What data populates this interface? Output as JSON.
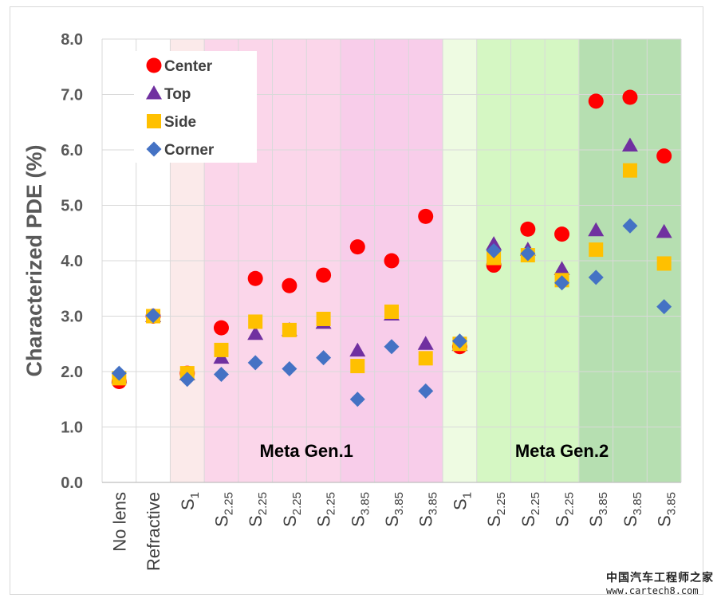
{
  "chart_data": {
    "type": "scatter",
    "ylabel": "Characterized PDE (%)",
    "ylim": [
      0,
      8
    ],
    "yticks": [
      "0.0",
      "1.0",
      "2.0",
      "3.0",
      "4.0",
      "5.0",
      "6.0",
      "7.0",
      "8.0"
    ],
    "categories": [
      {
        "base": "No lens",
        "sub": ""
      },
      {
        "base": "Refractive",
        "sub": ""
      },
      {
        "base": "S",
        "sub": "1"
      },
      {
        "base": "S",
        "sub": "2.25"
      },
      {
        "base": "S",
        "sub": "2.25"
      },
      {
        "base": "S",
        "sub": "2.25"
      },
      {
        "base": "S",
        "sub": "2.25"
      },
      {
        "base": "S",
        "sub": "3.85"
      },
      {
        "base": "S",
        "sub": "3.85"
      },
      {
        "base": "S",
        "sub": "3.85"
      },
      {
        "base": "S",
        "sub": "1"
      },
      {
        "base": "S",
        "sub": "2.25"
      },
      {
        "base": "S",
        "sub": "2.25"
      },
      {
        "base": "S",
        "sub": "2.25"
      },
      {
        "base": "S",
        "sub": "3.85"
      },
      {
        "base": "S",
        "sub": "3.85"
      },
      {
        "base": "S",
        "sub": "3.85"
      }
    ],
    "series": [
      {
        "name": "Center",
        "marker": "circle",
        "color": "#ff0000",
        "values": [
          1.82,
          3.0,
          1.97,
          2.79,
          3.68,
          3.55,
          3.74,
          4.25,
          4.0,
          4.8,
          2.45,
          3.92,
          4.57,
          4.48,
          6.88,
          6.95,
          5.89
        ]
      },
      {
        "name": "Top",
        "marker": "triangle",
        "color": "#7030a0",
        "values": [
          1.9,
          3.0,
          1.95,
          2.25,
          2.68,
          2.75,
          2.88,
          2.38,
          3.03,
          2.5,
          2.48,
          4.3,
          4.2,
          3.85,
          4.55,
          6.08,
          4.52
        ]
      },
      {
        "name": "Side",
        "marker": "square",
        "color": "#ffc000",
        "values": [
          1.88,
          3.0,
          1.97,
          2.39,
          2.9,
          2.75,
          2.95,
          2.1,
          3.08,
          2.24,
          2.5,
          4.05,
          4.1,
          3.65,
          4.2,
          5.63,
          3.95
        ]
      },
      {
        "name": "Corner",
        "marker": "diamond",
        "color": "#4472c4",
        "values": [
          1.97,
          3.01,
          1.86,
          1.95,
          2.16,
          2.05,
          2.25,
          1.5,
          2.45,
          1.65,
          2.55,
          4.18,
          4.13,
          3.6,
          3.7,
          4.63,
          3.17
        ]
      }
    ],
    "regions": [
      {
        "label": "",
        "color": "#fbeaea"
      },
      {
        "label": "",
        "color": "#fbd6ea"
      },
      {
        "label": "Meta Gen.1",
        "color": "#f8cdea"
      },
      {
        "label": "",
        "color": "#eefbe2"
      },
      {
        "label": "Meta Gen.2",
        "color": "#d5f7c3"
      },
      {
        "label": "",
        "color": "#b6dfb1"
      }
    ],
    "legend_position": "top-left",
    "grid": true
  },
  "watermark": {
    "line1": "中国汽车工程师之家",
    "line2": "www.cartech8.com"
  }
}
